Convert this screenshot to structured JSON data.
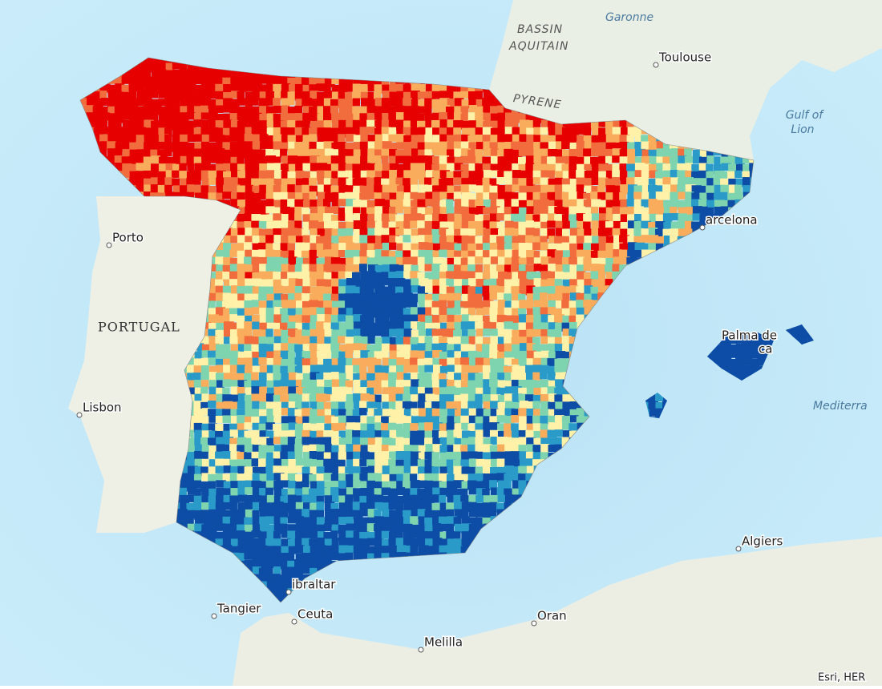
{
  "map": {
    "labels": [
      {
        "text": "BASSIN",
        "kind": "region"
      },
      {
        "text": "AQUITAIN",
        "kind": "region"
      },
      {
        "text": "Garonne",
        "kind": "river"
      },
      {
        "text": "Toulouse",
        "kind": "city"
      },
      {
        "text": "Gulf of",
        "kind": "sea"
      },
      {
        "text": "Lion",
        "kind": "sea"
      },
      {
        "text": "PYRENE",
        "kind": "range"
      },
      {
        "text": "Porto",
        "kind": "city"
      },
      {
        "text": "PORTUGAL",
        "kind": "country"
      },
      {
        "text": "Lisbon",
        "kind": "city"
      },
      {
        "text": "arcelona",
        "kind": "city"
      },
      {
        "text": "Palma de",
        "kind": "city"
      },
      {
        "text": "ca",
        "kind": "city"
      },
      {
        "text": "Mediterra",
        "kind": "sea"
      },
      {
        "text": "ibraltar",
        "kind": "city"
      },
      {
        "text": "Tangier",
        "kind": "city"
      },
      {
        "text": "Ceuta",
        "kind": "city"
      },
      {
        "text": "Oran",
        "kind": "city"
      },
      {
        "text": "Melilla",
        "kind": "city"
      },
      {
        "text": "Algiers",
        "kind": "city"
      },
      {
        "text": "Esri, HER",
        "kind": "attribution"
      }
    ]
  }
}
